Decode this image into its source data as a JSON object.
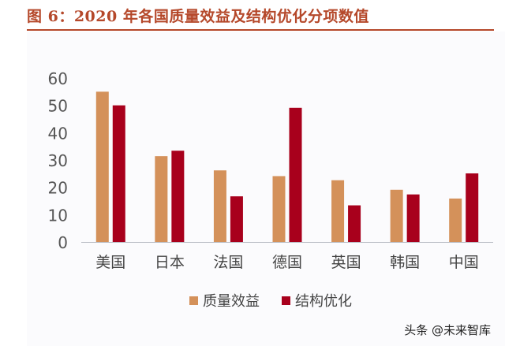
{
  "title": "图 6：2020 年各国质量效益及结构优化分项数值",
  "watermark": "头条 @未来智库",
  "chart_data": {
    "type": "bar",
    "title": "",
    "xlabel": "",
    "ylabel": "",
    "categories": [
      "美国",
      "日本",
      "法国",
      "德国",
      "英国",
      "韩国",
      "中国"
    ],
    "series": [
      {
        "name": "质量效益",
        "color": "#d4915a",
        "values": [
          55.0,
          31.4,
          26.2,
          24.1,
          22.6,
          19.1,
          15.9
        ]
      },
      {
        "name": "结构优化",
        "color": "#a8001c",
        "values": [
          50.0,
          33.4,
          16.7,
          49.1,
          13.4,
          17.4,
          25.1
        ]
      }
    ],
    "ylim": [
      0,
      60
    ],
    "yticks": [
      "0",
      "10",
      "20",
      "30",
      "40",
      "50",
      "60"
    ],
    "grid": false,
    "legend": "bottom"
  }
}
